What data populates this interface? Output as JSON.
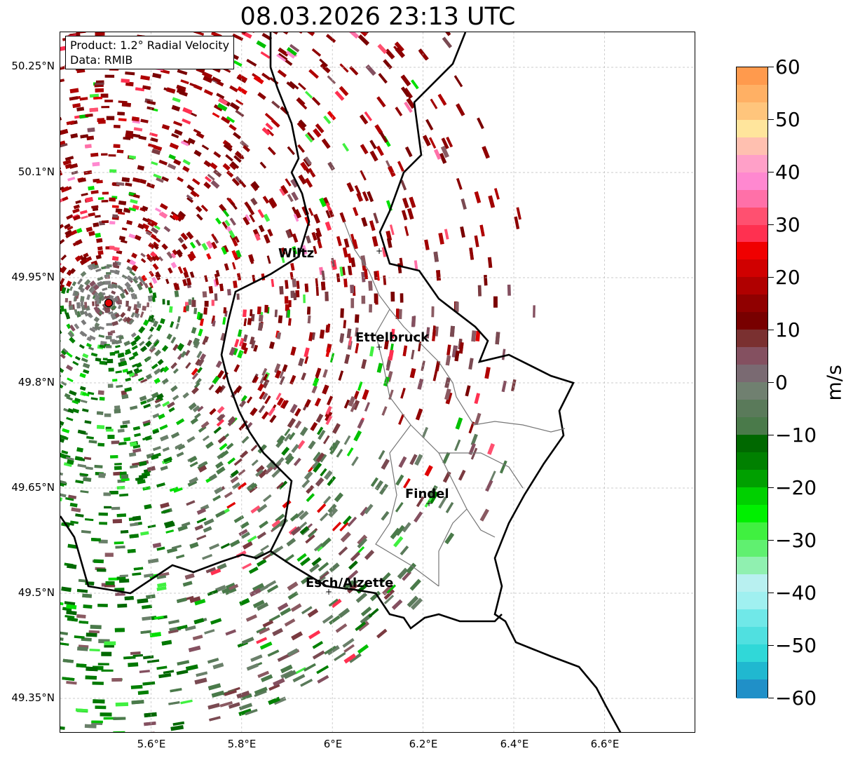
{
  "title": "08.03.2026 23:13 UTC",
  "info_box": {
    "product": "Product: 1.2° Radial Velocity",
    "data": "Data: RMIB"
  },
  "axes": {
    "lon_ticks": [
      "5.6°E",
      "5.8°E",
      "6°E",
      "6.2°E",
      "6.4°E",
      "6.6°E"
    ],
    "lat_ticks": [
      "50.25°N",
      "50.1°N",
      "49.95°N",
      "49.8°N",
      "49.65°N",
      "49.5°N",
      "49.35°N"
    ],
    "lon_range": [
      5.4,
      6.8
    ],
    "lat_range": [
      49.3,
      50.3
    ]
  },
  "cities": [
    {
      "name": "Wiltz",
      "lon": 5.93,
      "lat": 49.97
    },
    {
      "name": "Ettelbruck",
      "lon": 6.1,
      "lat": 49.85
    },
    {
      "name": "Findel",
      "lon": 6.21,
      "lat": 49.63
    },
    {
      "name": "Esch/Alzette",
      "lon": 5.99,
      "lat": 49.5
    }
  ],
  "radar_site": {
    "lon": 5.51,
    "lat": 49.91
  },
  "colorbar": {
    "unit": "m/s",
    "min": -60,
    "max": 60,
    "tick_labels": [
      "60",
      "50",
      "40",
      "30",
      "20",
      "10",
      "0",
      "−10",
      "−20",
      "−30",
      "−40",
      "−50",
      "−60"
    ],
    "colors": [
      "#ff9a4d",
      "#ffb064",
      "#ffc57c",
      "#ffe59c",
      "#ffc0b0",
      "#ffa0c8",
      "#ff88d0",
      "#ff70a8",
      "#ff5070",
      "#ff3050",
      "#f00000",
      "#d00000",
      "#b00000",
      "#900000",
      "#780000",
      "#7a3030",
      "#845060",
      "#7a6a72",
      "#708070",
      "#5a7a5a",
      "#4a7a4a",
      "#006800",
      "#008000",
      "#00a000",
      "#00d000",
      "#00f000",
      "#40f040",
      "#60f070",
      "#90f0b0",
      "#b8f0f0",
      "#a0f0f0",
      "#70e8e8",
      "#50e0e0",
      "#30d8d8",
      "#20b8d0",
      "#2090c8"
    ]
  }
}
